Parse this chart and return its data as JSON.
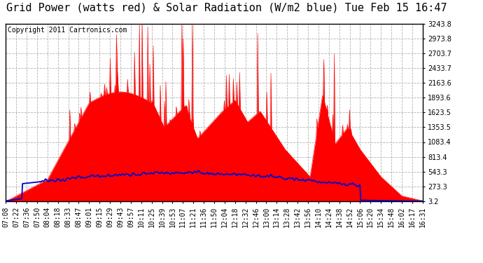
{
  "title": "Grid Power (watts red) & Solar Radiation (W/m2 blue) Tue Feb 15 16:47",
  "copyright": "Copyright 2011 Cartronics.com",
  "background_color": "#ffffff",
  "plot_bg_color": "#ffffff",
  "grid_color": "#aaaaaa",
  "yticks": [
    3.2,
    273.3,
    543.3,
    813.4,
    1083.4,
    1353.5,
    1623.5,
    1893.6,
    2163.6,
    2433.7,
    2703.7,
    2973.8,
    3243.8
  ],
  "ymin": 3.2,
  "ymax": 3243.8,
  "xtick_labels": [
    "07:08",
    "07:22",
    "07:36",
    "07:50",
    "08:04",
    "08:18",
    "08:33",
    "08:47",
    "09:01",
    "09:15",
    "09:29",
    "09:43",
    "09:57",
    "10:11",
    "10:25",
    "10:39",
    "10:53",
    "11:07",
    "11:21",
    "11:36",
    "11:50",
    "12:04",
    "12:18",
    "12:32",
    "12:46",
    "13:00",
    "13:14",
    "13:28",
    "13:42",
    "13:56",
    "14:10",
    "14:24",
    "14:38",
    "14:52",
    "15:06",
    "15:20",
    "15:34",
    "15:48",
    "16:02",
    "16:17",
    "16:31"
  ],
  "title_fontsize": 11,
  "copyright_fontsize": 7,
  "tick_fontsize": 7,
  "red_color": "#ff0000",
  "blue_color": "#0000cc",
  "border_color": "#000000"
}
